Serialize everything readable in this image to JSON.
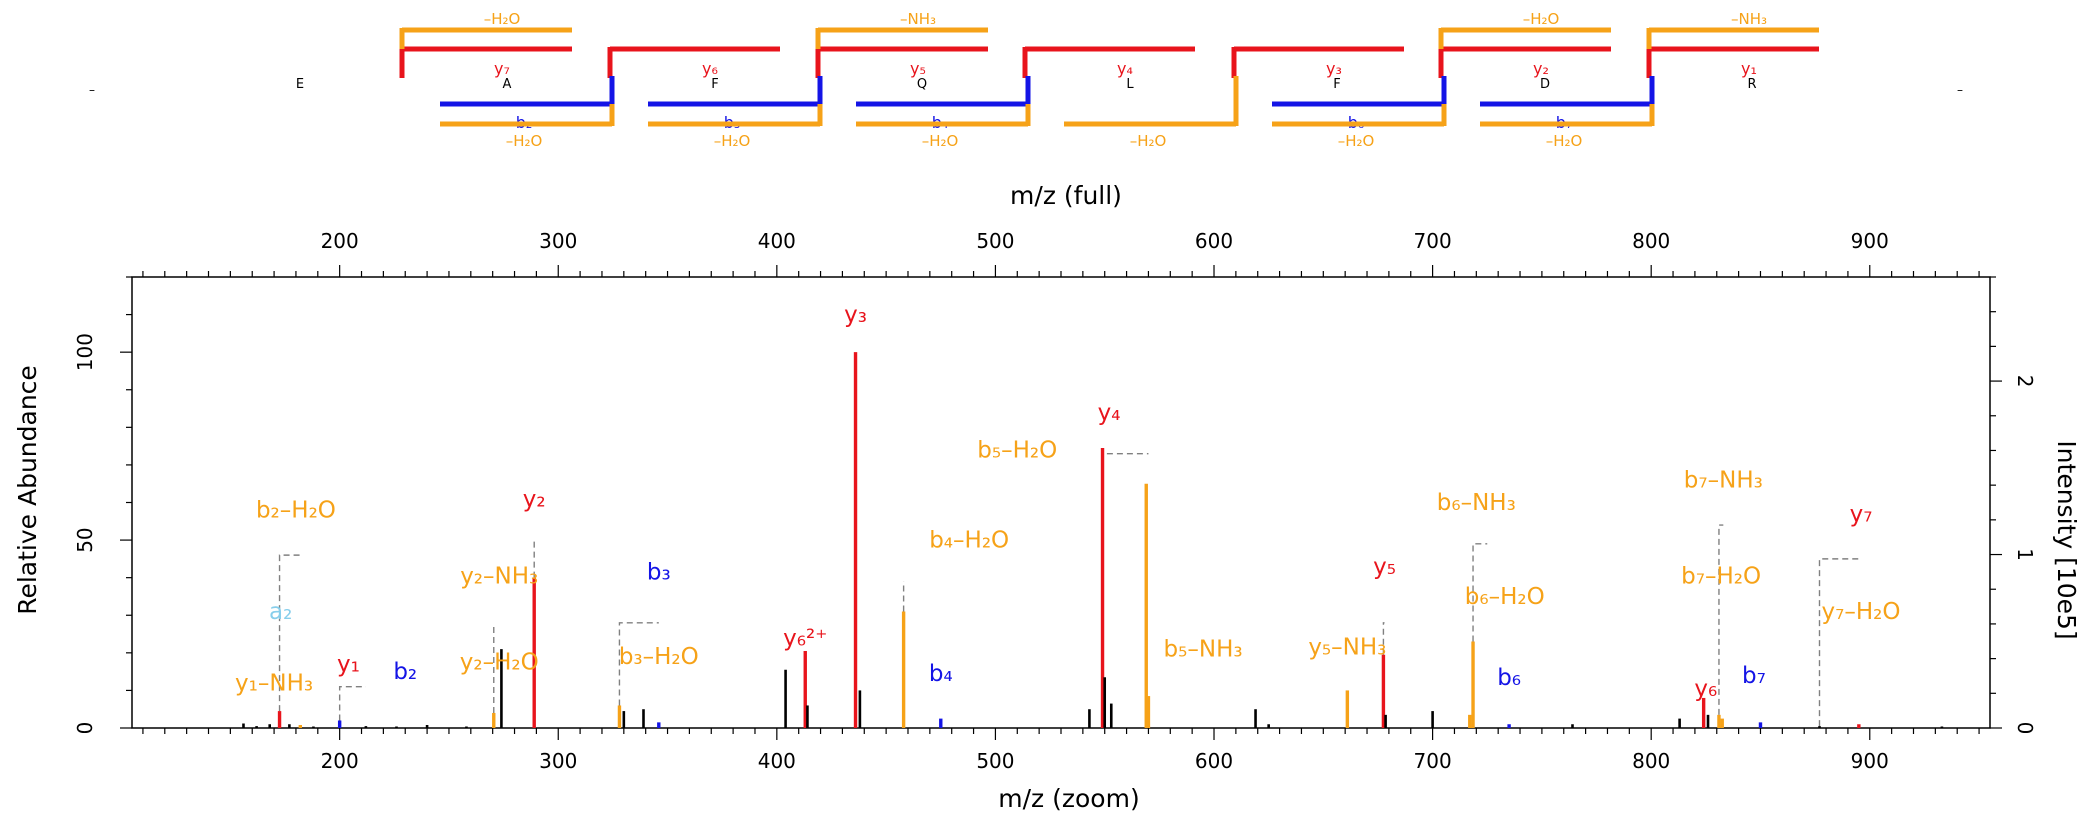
{
  "colors": {
    "y_ion": "#e8141c",
    "b_ion": "#1414e6",
    "loss": "#f6a218",
    "a_ion": "#87ceeb",
    "unmatched": "#000000",
    "connector": "#808080",
    "axis": "#000000"
  },
  "peptide": {
    "residues": [
      "E",
      "A",
      "F",
      "Q",
      "L",
      "F",
      "D",
      "R"
    ],
    "edge_marks": [
      "–",
      "–"
    ],
    "y_labels": [
      "y₇",
      "y₆",
      "y₅",
      "y₄",
      "y₃",
      "y₂",
      "y₁"
    ],
    "b_labels": [
      "b₂",
      "b₃",
      "b₄",
      "",
      "b₆",
      "b₇"
    ],
    "y_loss_labels": [
      "–H₂O",
      "",
      "–NH₃",
      "",
      "",
      "–H₂O",
      "–NH₃"
    ],
    "b_loss_labels": [
      "–H₂O",
      "–H₂O",
      "–H₂O",
      "–H₂O",
      "–H₂O",
      "–H₂O"
    ]
  },
  "chart_data": {
    "type": "bar",
    "xlabel_top": "m/z (full)",
    "xlabel_bottom": "m/z (zoom)",
    "ylabel_left": "Relative Abundance",
    "ylabel_right": "Intensity [10e5]",
    "xlim": [
      105,
      955
    ],
    "ylim": [
      0,
      120
    ],
    "y_ticks": [
      0,
      50,
      100
    ],
    "x_ticks": [
      200,
      300,
      400,
      500,
      600,
      700,
      800,
      900
    ],
    "right_axis_max": 2.6,
    "right_ticks": [
      0,
      1,
      2
    ],
    "top_tick_labels": [
      "200",
      "300",
      "400",
      "500",
      "600",
      "700",
      "800",
      "900"
    ],
    "bottom_tick_labels": [
      "200",
      "300",
      "400",
      "500",
      "600",
      "700",
      "800",
      "900"
    ],
    "left_tick_labels": [
      "0",
      "50",
      "100"
    ],
    "right_tick_labels": [
      "0",
      "1",
      "2"
    ],
    "peaks": [
      {
        "mz": 156,
        "rel": 1.2,
        "type": "unmatched"
      },
      {
        "mz": 162,
        "rel": 0.5,
        "type": "unmatched"
      },
      {
        "mz": 168,
        "rel": 1.0,
        "type": "unmatched"
      },
      {
        "mz": 172.5,
        "rel": 4.5,
        "type": "y_ion"
      },
      {
        "mz": 177,
        "rel": 1.0,
        "type": "unmatched"
      },
      {
        "mz": 182,
        "rel": 0.8,
        "type": "loss"
      },
      {
        "mz": 188,
        "rel": 0.4,
        "type": "unmatched"
      },
      {
        "mz": 200,
        "rel": 2.0,
        "type": "b_ion"
      },
      {
        "mz": 212,
        "rel": 0.5,
        "type": "unmatched"
      },
      {
        "mz": 226,
        "rel": 0.4,
        "type": "unmatched"
      },
      {
        "mz": 240,
        "rel": 0.8,
        "type": "unmatched"
      },
      {
        "mz": 258,
        "rel": 0.4,
        "type": "unmatched"
      },
      {
        "mz": 270.5,
        "rel": 4.0,
        "type": "loss"
      },
      {
        "mz": 274,
        "rel": 21,
        "type": "unmatched"
      },
      {
        "mz": 289,
        "rel": 40,
        "type": "y_ion"
      },
      {
        "mz": 328,
        "rel": 6,
        "type": "loss"
      },
      {
        "mz": 330,
        "rel": 4.5,
        "type": "unmatched"
      },
      {
        "mz": 339,
        "rel": 5,
        "type": "unmatched"
      },
      {
        "mz": 346,
        "rel": 1.5,
        "type": "b_ion"
      },
      {
        "mz": 404,
        "rel": 15.5,
        "type": "unmatched"
      },
      {
        "mz": 413,
        "rel": 20.5,
        "type": "y_ion"
      },
      {
        "mz": 414,
        "rel": 6,
        "type": "unmatched"
      },
      {
        "mz": 436,
        "rel": 100,
        "type": "y_ion"
      },
      {
        "mz": 438,
        "rel": 10,
        "type": "unmatched"
      },
      {
        "mz": 458,
        "rel": 31,
        "type": "loss"
      },
      {
        "mz": 475,
        "rel": 2.5,
        "type": "b_ion"
      },
      {
        "mz": 543,
        "rel": 5,
        "type": "unmatched"
      },
      {
        "mz": 549,
        "rel": 74.5,
        "type": "y_ion"
      },
      {
        "mz": 550,
        "rel": 13.5,
        "type": "unmatched"
      },
      {
        "mz": 553,
        "rel": 6.5,
        "type": "unmatched"
      },
      {
        "mz": 569,
        "rel": 65,
        "type": "loss"
      },
      {
        "mz": 570,
        "rel": 8.5,
        "type": "loss"
      },
      {
        "mz": 619,
        "rel": 5,
        "type": "unmatched"
      },
      {
        "mz": 625,
        "rel": 1.0,
        "type": "unmatched"
      },
      {
        "mz": 661,
        "rel": 10,
        "type": "loss"
      },
      {
        "mz": 677.5,
        "rel": 19.5,
        "type": "y_ion"
      },
      {
        "mz": 678.5,
        "rel": 3.5,
        "type": "unmatched"
      },
      {
        "mz": 700,
        "rel": 4.5,
        "type": "unmatched"
      },
      {
        "mz": 717,
        "rel": 3.5,
        "type": "loss"
      },
      {
        "mz": 718.5,
        "rel": 23,
        "type": "loss"
      },
      {
        "mz": 735,
        "rel": 1.0,
        "type": "b_ion"
      },
      {
        "mz": 764,
        "rel": 1.0,
        "type": "unmatched"
      },
      {
        "mz": 813,
        "rel": 2.5,
        "type": "unmatched"
      },
      {
        "mz": 824,
        "rel": 8,
        "type": "y_ion"
      },
      {
        "mz": 826,
        "rel": 3.5,
        "type": "unmatched"
      },
      {
        "mz": 831,
        "rel": 3.5,
        "type": "loss"
      },
      {
        "mz": 832.5,
        "rel": 2.5,
        "type": "loss"
      },
      {
        "mz": 850,
        "rel": 1.5,
        "type": "b_ion"
      },
      {
        "mz": 877,
        "rel": 0.5,
        "type": "unmatched"
      },
      {
        "mz": 895,
        "rel": 1.0,
        "type": "y_ion"
      },
      {
        "mz": 933,
        "rel": 0.4,
        "type": "unmatched"
      }
    ],
    "annotations": [
      {
        "text": "y₁–NH₃",
        "type": "loss",
        "mz": 170,
        "rel": 10
      },
      {
        "text": "a₂",
        "type": "a_ion",
        "mz": 173,
        "rel": 29
      },
      {
        "text": "b₂–H₂O",
        "type": "loss",
        "mz": 180,
        "rel": 56
      },
      {
        "text": "y₁",
        "type": "y_ion",
        "mz": 204,
        "rel": 15
      },
      {
        "text": "b₂",
        "type": "b_ion",
        "mz": 230,
        "rel": 13
      },
      {
        "text": "y₂–H₂O",
        "type": "loss",
        "mz": 273,
        "rel": 15.5
      },
      {
        "text": "y₂–NH₃",
        "type": "loss",
        "mz": 273,
        "rel": 38.5
      },
      {
        "text": "y₂",
        "type": "y_ion",
        "mz": 289,
        "rel": 59
      },
      {
        "text": "b₃–H₂O",
        "type": "loss",
        "mz": 346,
        "rel": 17
      },
      {
        "text": "b₃",
        "type": "b_ion",
        "mz": 346,
        "rel": 39.5
      },
      {
        "text": "y₆²⁺",
        "type": "y_ion",
        "mz": 413,
        "rel": 22
      },
      {
        "text": "y₃",
        "type": "y_ion",
        "mz": 436,
        "rel": 108
      },
      {
        "text": "b₄–H₂O",
        "type": "loss",
        "mz": 488,
        "rel": 48
      },
      {
        "text": "b₄",
        "type": "b_ion",
        "mz": 475,
        "rel": 12.5
      },
      {
        "text": "b₅–H₂O",
        "type": "loss",
        "mz": 510,
        "rel": 72
      },
      {
        "text": "y₄",
        "type": "y_ion",
        "mz": 552,
        "rel": 82
      },
      {
        "text": "b₅–NH₃",
        "type": "loss",
        "mz": 595,
        "rel": 19
      },
      {
        "text": "y₅–NH₃",
        "type": "loss",
        "mz": 661,
        "rel": 19.5
      },
      {
        "text": "y₅",
        "type": "y_ion",
        "mz": 678,
        "rel": 41
      },
      {
        "text": "b₆–NH₃",
        "type": "loss",
        "mz": 720,
        "rel": 58
      },
      {
        "text": "b₆–H₂O",
        "type": "loss",
        "mz": 733,
        "rel": 33
      },
      {
        "text": "b₆",
        "type": "b_ion",
        "mz": 735,
        "rel": 11.5
      },
      {
        "text": "y₆",
        "type": "y_ion",
        "mz": 825,
        "rel": 8.5
      },
      {
        "text": "b₇–NH₃",
        "type": "loss",
        "mz": 833,
        "rel": 64
      },
      {
        "text": "b₇–H₂O",
        "type": "loss",
        "mz": 832,
        "rel": 38.5
      },
      {
        "text": "b₇",
        "type": "b_ion",
        "mz": 847,
        "rel": 12
      },
      {
        "text": "y₇",
        "type": "y_ion",
        "mz": 896,
        "rel": 55
      },
      {
        "text": "y₇–H₂O",
        "type": "loss",
        "mz": 896,
        "rel": 29
      }
    ],
    "connectors": [
      {
        "from": [
          172.5,
          4.5
        ],
        "to": [
          182,
          46
        ]
      },
      {
        "from": [
          200,
          2
        ],
        "to": [
          212,
          11
        ]
      },
      {
        "from": [
          270.5,
          4
        ],
        "to": [
          270.5,
          27
        ]
      },
      {
        "from": [
          289,
          40
        ],
        "to": [
          289,
          50
        ]
      },
      {
        "from": [
          328,
          6
        ],
        "to": [
          346,
          28
        ]
      },
      {
        "from": [
          458,
          31
        ],
        "to": [
          458,
          39
        ]
      },
      {
        "from": [
          549,
          74.5
        ],
        "to": [
          570,
          73
        ]
      },
      {
        "from": [
          677.5,
          19.5
        ],
        "to": [
          678,
          28
        ]
      },
      {
        "from": [
          718.5,
          23
        ],
        "to": [
          725,
          49
        ]
      },
      {
        "from": [
          831,
          3.5
        ],
        "to": [
          833,
          54
        ]
      },
      {
        "from": [
          877,
          0.5
        ],
        "to": [
          895,
          45
        ]
      }
    ]
  }
}
